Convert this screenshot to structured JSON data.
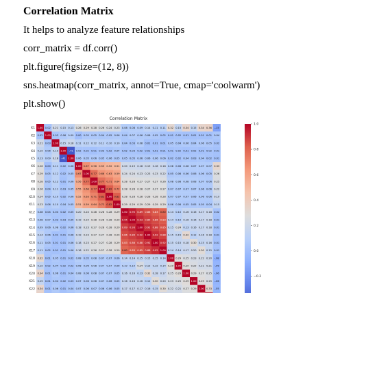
{
  "document": {
    "heading": "Correlation Matrix",
    "intro": "It helps to analyze feature relationships",
    "code_lines": [
      "corr_matrix = df.corr()",
      "plt.figure(figsize=(12, 8))",
      "sns.heatmap(corr_matrix, annot=True, cmap='coolwarm')",
      "plt.show()"
    ]
  },
  "chart_data": {
    "type": "heatmap",
    "title": "Correlation Matrix",
    "labels": [
      "X1",
      "X2",
      "X3",
      "X4",
      "X5",
      "X6",
      "X7",
      "X8",
      "X9",
      "X10",
      "X11",
      "X12",
      "X13",
      "X14",
      "X15",
      "X16",
      "X17",
      "X18",
      "X19",
      "X20",
      "X21",
      "X22",
      "X23",
      "Y"
    ],
    "colorbar_ticks": [
      "1.0",
      "0.8",
      "0.6",
      "0.4",
      "0.2",
      "0.0",
      "−0.2",
      "−0.4"
    ],
    "colorbar_range": [
      -0.45,
      1.0
    ],
    "colormap": "coolwarm",
    "matrix": [
      [
        1.0,
        0.02,
        0.21,
        0.15,
        0.13,
        0.26,
        0.29,
        0.28,
        0.26,
        0.24,
        0.23,
        0.08,
        0.08,
        0.09,
        0.14,
        0.11,
        0.11,
        0.32,
        0.15,
        0.34,
        0.15,
        0.34,
        0.36,
        -0.15
      ],
      [
        0.02,
        1.0,
        0.03,
        0.06,
        0.09,
        0.0,
        0.05,
        0.05,
        0.04,
        0.05,
        0.06,
        0.04,
        0.07,
        0.06,
        0.06,
        0.05,
        0.02,
        0.01,
        0.02,
        0.01,
        0.01,
        0.01,
        0.01,
        0.04
      ],
      [
        0.21,
        0.03,
        1.0,
        0.15,
        0.18,
        0.11,
        0.12,
        0.12,
        0.11,
        0.1,
        0.1,
        0.04,
        0.03,
        0.08,
        0.01,
        0.01,
        0.01,
        0.05,
        0.04,
        0.06,
        0.04,
        0.06,
        0.05,
        0.02
      ],
      [
        0.15,
        0.06,
        0.15,
        1.0,
        -0.41,
        0.02,
        0.02,
        0.01,
        0.03,
        0.02,
        0.04,
        0.02,
        0.03,
        0.02,
        0.01,
        0.01,
        0.01,
        0.01,
        0.02,
        0.01,
        0.02,
        0.01,
        0.02,
        0.01
      ],
      [
        0.13,
        0.09,
        0.18,
        -0.41,
        1.0,
        0.06,
        0.05,
        0.06,
        0.05,
        0.06,
        0.05,
        0.05,
        0.05,
        0.06,
        0.06,
        0.06,
        0.06,
        0.02,
        0.02,
        0.04,
        0.03,
        0.04,
        0.02,
        0.01
      ],
      [
        0.26,
        0.0,
        0.11,
        0.02,
        0.06,
        1.0,
        0.67,
        0.56,
        0.55,
        0.52,
        0.51,
        0.2,
        0.19,
        0.18,
        0.19,
        0.18,
        0.18,
        0.08,
        0.06,
        0.08,
        0.07,
        0.07,
        0.07,
        0.33
      ],
      [
        0.29,
        0.05,
        0.12,
        0.02,
        0.05,
        0.67,
        1.0,
        0.77,
        0.66,
        0.63,
        0.59,
        0.24,
        0.24,
        0.23,
        0.23,
        0.23,
        0.22,
        0.05,
        0.06,
        0.06,
        0.06,
        0.06,
        0.05,
        0.26
      ],
      [
        0.28,
        0.05,
        0.12,
        0.01,
        0.06,
        0.56,
        0.77,
        1.0,
        0.77,
        0.71,
        0.64,
        0.28,
        0.28,
        0.27,
        0.27,
        0.27,
        0.26,
        0.08,
        0.08,
        0.08,
        0.08,
        0.07,
        0.06,
        0.25
      ],
      [
        0.26,
        0.04,
        0.11,
        0.03,
        0.05,
        0.55,
        0.66,
        0.77,
        1.0,
        0.82,
        0.72,
        0.28,
        0.28,
        0.28,
        0.27,
        0.27,
        0.27,
        0.07,
        0.07,
        0.07,
        0.07,
        0.06,
        0.06,
        0.22
      ],
      [
        0.24,
        0.05,
        0.1,
        0.02,
        0.06,
        0.52,
        0.63,
        0.71,
        0.82,
        1.0,
        0.82,
        0.28,
        0.28,
        0.28,
        0.28,
        0.28,
        0.28,
        0.07,
        0.07,
        0.07,
        0.06,
        0.06,
        0.06,
        0.19
      ],
      [
        0.23,
        0.06,
        0.1,
        0.04,
        0.05,
        0.51,
        0.59,
        0.64,
        0.72,
        0.82,
        1.0,
        0.29,
        0.29,
        0.29,
        0.29,
        0.29,
        0.29,
        0.06,
        0.06,
        0.05,
        0.05,
        0.05,
        0.04,
        0.15
      ],
      [
        0.08,
        0.04,
        0.04,
        0.02,
        0.05,
        0.2,
        0.24,
        0.28,
        0.28,
        0.28,
        0.29,
        1.0,
        0.95,
        0.89,
        0.86,
        0.83,
        0.8,
        0.14,
        0.1,
        0.16,
        0.16,
        0.17,
        0.18,
        0.02
      ],
      [
        0.08,
        0.07,
        0.03,
        0.03,
        0.05,
        0.19,
        0.24,
        0.28,
        0.28,
        0.28,
        0.29,
        0.95,
        1.0,
        0.93,
        0.89,
        0.86,
        0.83,
        0.14,
        0.1,
        0.16,
        0.16,
        0.17,
        0.18,
        0.01
      ],
      [
        0.09,
        0.06,
        0.08,
        0.02,
        0.06,
        0.18,
        0.23,
        0.27,
        0.28,
        0.28,
        0.29,
        0.89,
        0.93,
        1.0,
        0.92,
        0.88,
        0.85,
        0.15,
        0.24,
        0.13,
        0.16,
        0.17,
        0.18,
        0.01
      ],
      [
        0.14,
        0.06,
        0.01,
        0.01,
        0.06,
        0.19,
        0.23,
        0.27,
        0.27,
        0.28,
        0.29,
        0.86,
        0.89,
        0.92,
        1.0,
        0.92,
        0.88,
        0.15,
        0.15,
        0.32,
        0.12,
        0.16,
        0.18,
        0.01
      ],
      [
        0.11,
        0.05,
        0.01,
        0.01,
        0.06,
        0.18,
        0.23,
        0.27,
        0.27,
        0.28,
        0.29,
        0.83,
        0.86,
        0.88,
        0.92,
        1.0,
        0.92,
        0.15,
        0.15,
        0.18,
        0.3,
        0.15,
        0.16,
        0.01
      ],
      [
        0.11,
        0.02,
        0.01,
        0.01,
        0.06,
        0.18,
        0.22,
        0.26,
        0.27,
        0.28,
        0.29,
        0.8,
        0.83,
        0.85,
        0.88,
        0.92,
        1.0,
        0.14,
        0.14,
        0.17,
        0.2,
        0.3,
        0.15,
        0.01
      ],
      [
        0.32,
        0.01,
        0.05,
        0.01,
        0.02,
        0.08,
        0.05,
        0.08,
        0.07,
        0.07,
        0.06,
        0.14,
        0.14,
        0.15,
        0.15,
        0.15,
        0.14,
        1.0,
        0.29,
        0.25,
        0.23,
        0.22,
        0.2,
        -0.08
      ],
      [
        0.15,
        0.02,
        0.04,
        0.02,
        0.02,
        0.06,
        0.06,
        0.08,
        0.07,
        0.07,
        0.06,
        0.1,
        0.1,
        0.24,
        0.15,
        0.15,
        0.14,
        0.29,
        1.0,
        0.29,
        0.25,
        0.21,
        0.21,
        -0.06
      ],
      [
        0.34,
        0.01,
        0.06,
        0.01,
        0.04,
        0.08,
        0.06,
        0.08,
        0.07,
        0.07,
        0.05,
        0.16,
        0.16,
        0.13,
        0.32,
        0.18,
        0.17,
        0.25,
        0.29,
        1.0,
        0.29,
        0.27,
        0.25,
        -0.06
      ],
      [
        0.15,
        0.01,
        0.04,
        0.02,
        0.03,
        0.07,
        0.06,
        0.08,
        0.07,
        0.06,
        0.05,
        0.16,
        0.16,
        0.16,
        0.12,
        0.3,
        0.2,
        0.23,
        0.25,
        0.29,
        1.0,
        0.29,
        0.25,
        -0.06
      ],
      [
        0.34,
        0.01,
        0.06,
        0.01,
        0.04,
        0.07,
        0.06,
        0.07,
        0.06,
        0.06,
        0.05,
        0.17,
        0.17,
        0.17,
        0.16,
        0.15,
        0.3,
        0.22,
        0.21,
        0.27,
        0.29,
        1.0,
        0.33,
        -0.05
      ],
      [
        0.36,
        0.01,
        0.05,
        0.02,
        0.02,
        0.07,
        0.05,
        0.06,
        0.06,
        0.06,
        0.04,
        0.18,
        0.18,
        0.18,
        0.18,
        0.16,
        0.15,
        0.2,
        0.21,
        0.25,
        0.25,
        0.33,
        1.0,
        -0.05
      ],
      [
        -0.15,
        0.04,
        0.02,
        0.01,
        0.01,
        0.33,
        0.26,
        0.25,
        0.22,
        0.19,
        0.15,
        0.02,
        0.01,
        0.01,
        0.01,
        0.01,
        0.01,
        -0.08,
        -0.06,
        -0.06,
        -0.06,
        -0.05,
        -0.05,
        1.0
      ]
    ]
  }
}
